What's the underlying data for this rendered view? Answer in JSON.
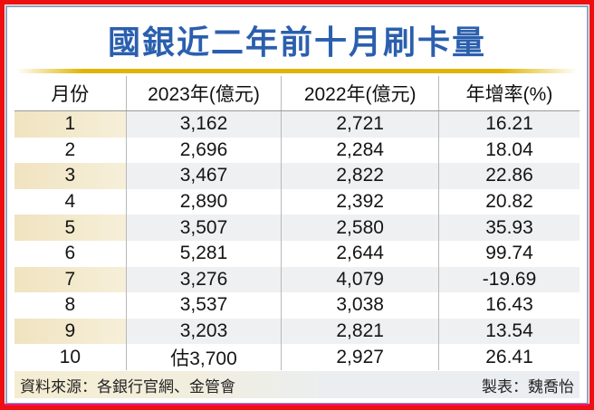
{
  "chart_data": {
    "type": "table",
    "title": "國銀近二年前十月刷卡量",
    "columns": [
      "月份",
      "2023年(億元)",
      "2022年(億元)",
      "年增率(%)"
    ],
    "rows": [
      [
        "1",
        "3,162",
        "2,721",
        "16.21"
      ],
      [
        "2",
        "2,696",
        "2,284",
        "18.04"
      ],
      [
        "3",
        "3,467",
        "2,822",
        "22.86"
      ],
      [
        "4",
        "2,890",
        "2,392",
        "20.82"
      ],
      [
        "5",
        "3,507",
        "2,580",
        "35.93"
      ],
      [
        "6",
        "5,281",
        "2,644",
        "99.74"
      ],
      [
        "7",
        "3,276",
        "4,079",
        "-19.69"
      ],
      [
        "8",
        "3,537",
        "3,038",
        "16.43"
      ],
      [
        "9",
        "3,203",
        "2,821",
        "13.54"
      ],
      [
        "10",
        "估3,700",
        "2,927",
        "26.41"
      ]
    ],
    "source": "資料來源：各銀行官網、金管會",
    "credit": "製表：魏喬怡"
  },
  "colors": {
    "outer_border_red": "#ee1010",
    "bottom_edge_magenta": "#ef1480",
    "inner_border_blue": "#8ba6c3",
    "title_blue": "#2b5fae",
    "gold_rule": "#e0b400",
    "stripe_gray": "#eef0f2",
    "stripe_cream": "#f0e3c0"
  }
}
